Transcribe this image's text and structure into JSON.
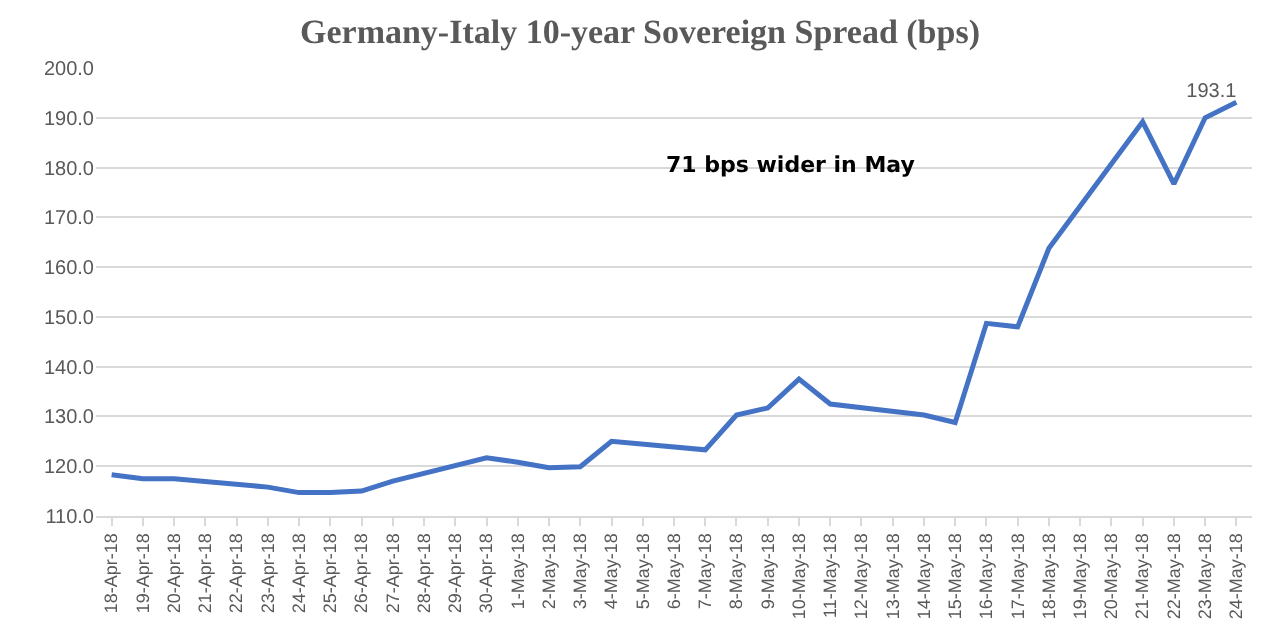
{
  "chart_data": {
    "type": "line",
    "title": "Germany-Italy 10-year Sovereign Spread (bps)",
    "categories": [
      "18-Apr-18",
      "19-Apr-18",
      "20-Apr-18",
      "21-Apr-18",
      "22-Apr-18",
      "23-Apr-18",
      "24-Apr-18",
      "25-Apr-18",
      "26-Apr-18",
      "27-Apr-18",
      "28-Apr-18",
      "29-Apr-18",
      "30-Apr-18",
      "1-May-18",
      "2-May-18",
      "3-May-18",
      "4-May-18",
      "5-May-18",
      "6-May-18",
      "7-May-18",
      "8-May-18",
      "9-May-18",
      "10-May-18",
      "11-May-18",
      "12-May-18",
      "13-May-18",
      "14-May-18",
      "15-May-18",
      "16-May-18",
      "17-May-18",
      "18-May-18",
      "19-May-18",
      "20-May-18",
      "21-May-18",
      "22-May-18",
      "23-May-18",
      "24-May-18"
    ],
    "series": [
      {
        "color": "#4472c4",
        "values": [
          118.3,
          117.5,
          117.5,
          null,
          null,
          115.8,
          114.7,
          114.7,
          115,
          117,
          null,
          null,
          121.7,
          120.8,
          119.7,
          119.9,
          125,
          null,
          null,
          123.3,
          130.3,
          131.7,
          137.5,
          132.5,
          null,
          null,
          130.3,
          128.8,
          148.7,
          148,
          163.8,
          null,
          null,
          189.2,
          176.7,
          190,
          193.1
        ],
        "value_labels": [
          null,
          null,
          null,
          null,
          null,
          null,
          null,
          null,
          null,
          null,
          null,
          null,
          null,
          null,
          null,
          null,
          null,
          null,
          null,
          null,
          null,
          null,
          null,
          null,
          null,
          null,
          null,
          null,
          null,
          null,
          null,
          null,
          null,
          null,
          null,
          null,
          "193.1"
        ]
      }
    ],
    "ylim": [
      110,
      200
    ],
    "yticks": [
      {
        "value": 110,
        "label": "110.0"
      },
      {
        "value": 120,
        "label": "120.0"
      },
      {
        "value": 130,
        "label": "130.0"
      },
      {
        "value": 140,
        "label": "140.0"
      },
      {
        "value": 150,
        "label": "150.0"
      },
      {
        "value": 160,
        "label": "160.0"
      },
      {
        "value": 170,
        "label": "170.0"
      },
      {
        "value": 180,
        "label": "180.0"
      },
      {
        "value": 190,
        "label": "190.0"
      },
      {
        "value": 200,
        "label": "200.0"
      }
    ],
    "grid": "y",
    "marker": "none",
    "line_style": "solid",
    "annotations": [
      "71 bps wider in May"
    ]
  }
}
